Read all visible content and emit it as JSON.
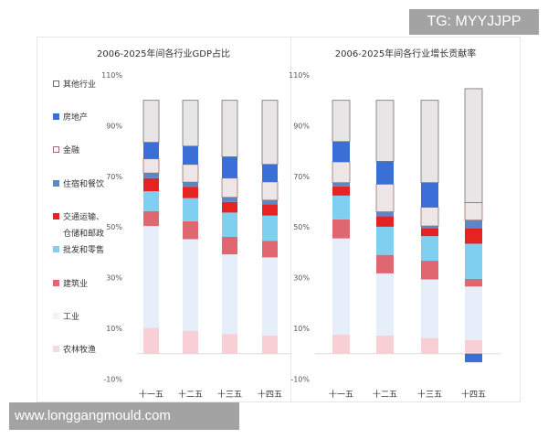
{
  "chart_data": [
    {
      "type": "bar",
      "stacked": true,
      "title": "2006-2025年间各行业GDP占比",
      "categories": [
        "十一五",
        "十二五",
        "十三五",
        "十四五"
      ],
      "yticks": [
        "110%",
        "90%",
        "70%",
        "50%",
        "30%",
        "10%",
        "-10%"
      ],
      "ylim": [
        -10,
        110
      ],
      "grid": false,
      "legend": "left",
      "series": [
        {
          "name": "农林牧渔",
          "color": "#f7cfd5",
          "values": [
            10.2,
            9.0,
            7.8,
            7.2
          ]
        },
        {
          "name": "工业",
          "color": "#e6eef9",
          "values": [
            40.2,
            36.2,
            31.4,
            30.8
          ]
        },
        {
          "name": "建筑业",
          "color": "#e06670",
          "values": [
            5.9,
            7.1,
            6.9,
            6.6
          ]
        },
        {
          "name": "批发和零售",
          "color": "#7fd0f0",
          "values": [
            7.8,
            9.1,
            9.6,
            9.9
          ]
        },
        {
          "name": "交通运输、仓储和邮政",
          "color": "#e62222",
          "values": [
            5.2,
            4.5,
            4.2,
            4.5
          ]
        },
        {
          "name": "住宿和餐饮",
          "color": "#5b87c7",
          "values": [
            2.0,
            1.8,
            1.8,
            1.6
          ]
        },
        {
          "name": "金融",
          "color": "#ece6e6",
          "border": "#a07070",
          "values": [
            5.6,
            7.0,
            7.6,
            7.2
          ]
        },
        {
          "name": "房地产",
          "color": "#3b6fd8",
          "values": [
            6.5,
            7.2,
            8.4,
            6.9
          ]
        },
        {
          "name": "其他行业",
          "color": "#e8e5e7",
          "border": "#707070",
          "values": [
            16.6,
            18.1,
            22.3,
            25.3
          ]
        }
      ]
    },
    {
      "type": "bar",
      "stacked": true,
      "title": "2006-2025年间各行业增长贡献率",
      "categories": [
        "十一五",
        "十二五",
        "十三五",
        "十四五"
      ],
      "yticks": [
        "110%",
        "90%",
        "70%",
        "50%",
        "30%",
        "10%",
        "-10%"
      ],
      "ylim": [
        -10,
        110
      ],
      "grid": false,
      "series": [
        {
          "name": "农林牧渔",
          "color": "#f7cfd5",
          "values": [
            7.5,
            7.2,
            6.3,
            5.4
          ]
        },
        {
          "name": "工业",
          "color": "#e6eef9",
          "values": [
            38.0,
            24.5,
            23.0,
            21.1
          ]
        },
        {
          "name": "建筑业",
          "color": "#e06670",
          "values": [
            7.5,
            7.3,
            7.4,
            3.0
          ]
        },
        {
          "name": "批发和零售",
          "color": "#7fd0f0",
          "values": [
            9.4,
            11.1,
            9.7,
            13.9
          ]
        },
        {
          "name": "交通运输、仓储和邮政",
          "color": "#e62222",
          "values": [
            3.6,
            4.1,
            3.2,
            6.2
          ]
        },
        {
          "name": "住宿和餐饮",
          "color": "#5b87c7",
          "values": [
            1.5,
            1.8,
            0.8,
            3.1
          ]
        },
        {
          "name": "金融",
          "color": "#ece6e6",
          "border": "#a07070",
          "values": [
            8.2,
            10.9,
            7.4,
            6.9
          ]
        },
        {
          "name": "房地产",
          "color": "#3b6fd8",
          "values": [
            8.0,
            9.0,
            9.7,
            -3.4
          ]
        },
        {
          "name": "其他行业",
          "color": "#e8e5e7",
          "border": "#707070",
          "values": [
            16.3,
            24.1,
            32.5,
            45.0
          ]
        }
      ]
    }
  ],
  "legend": {
    "items": [
      {
        "label": "其他行业",
        "color": "#ffffff",
        "border": "#707070"
      },
      {
        "label": "房地产",
        "color": "#3b6fd8"
      },
      {
        "label": "金融",
        "color": "#ffffff",
        "border": "#a07070"
      },
      {
        "label": "住宿和餐饮",
        "color": "#5b87c7"
      },
      {
        "label": "交通运输、",
        "label2": "仓储和邮政",
        "color": "#e62222"
      },
      {
        "label": "批发和零售",
        "color": "#7fd0f0"
      },
      {
        "label": "建筑业",
        "color": "#e06670"
      },
      {
        "label": "工业",
        "color": "#f1f3f6"
      },
      {
        "label": "农林牧渔",
        "color": "#ecdfe2"
      }
    ]
  },
  "overlays": {
    "top_banner": "TG: MYYJJPP",
    "bottom_banner": "www.longgangmould.com"
  }
}
